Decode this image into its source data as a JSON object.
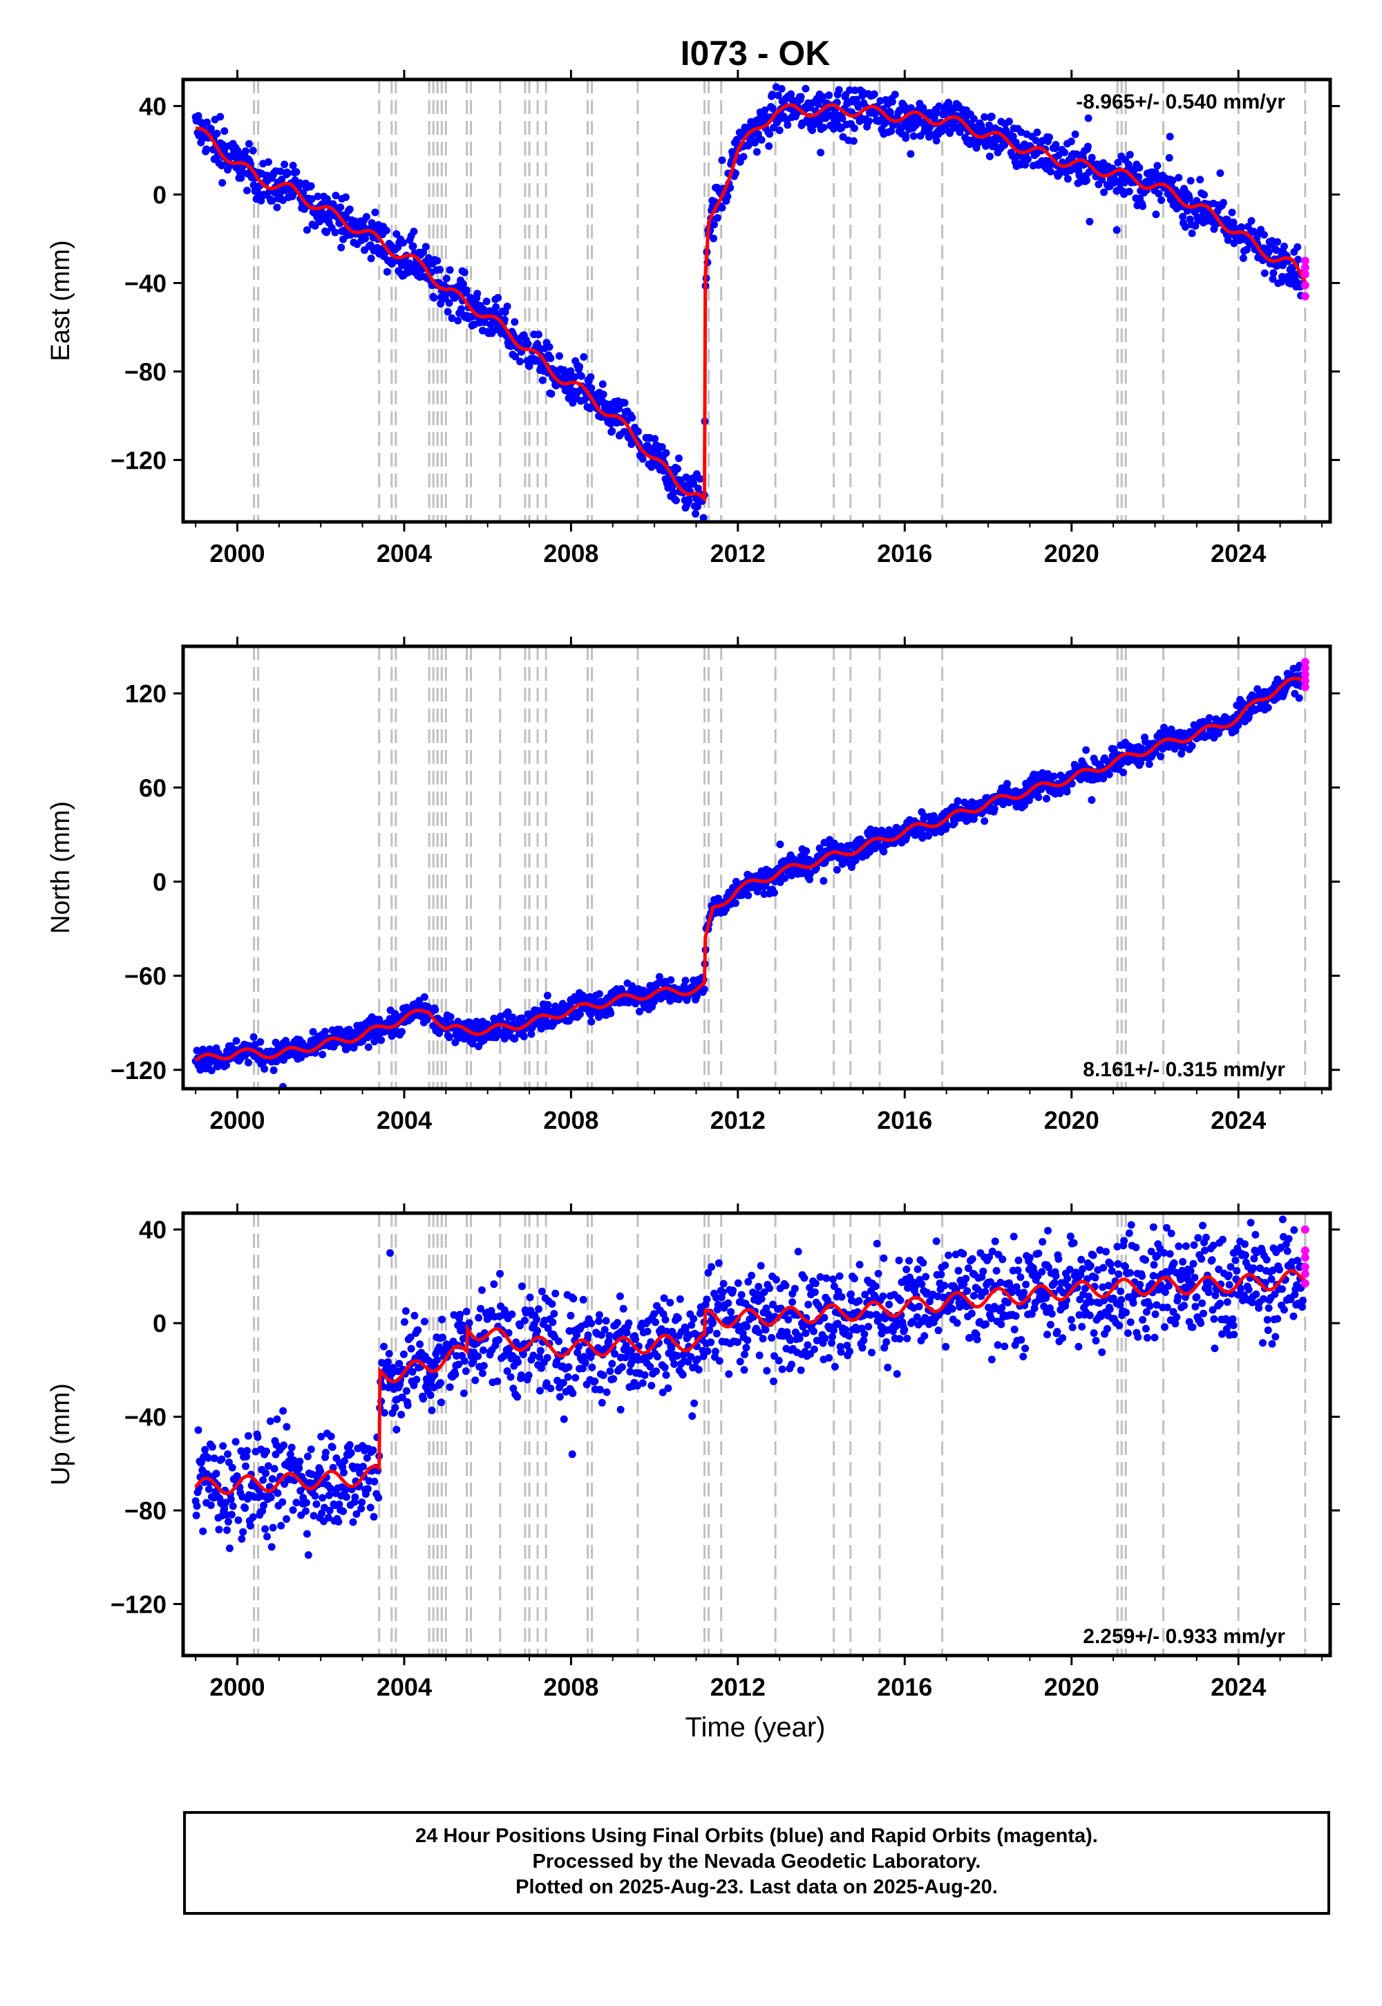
{
  "title": "I073 - OK",
  "xlabel": "Time (year)",
  "colors": {
    "final": "#0000ff",
    "rapid": "#ff00ff",
    "model": "#ff0000",
    "event": "#c0c0c0"
  },
  "caption": {
    "line1": "24 Hour Positions Using Final Orbits (blue) and Rapid Orbits (magenta).",
    "line2": "Processed by the Nevada Geodetic Laboratory.",
    "line3": "Plotted on 2025-Aug-23. Last data on 2025-Aug-20."
  },
  "chart_data": [
    {
      "type": "scatter",
      "name": "east",
      "ylabel": "East (mm)",
      "rate_label": "-8.965+/- 0.540 mm/yr",
      "rate_position": "top-right",
      "xlim": [
        1998.7,
        2026.2
      ],
      "ylim": [
        -148,
        52
      ],
      "xticks": [
        2000,
        2004,
        2008,
        2012,
        2016,
        2020,
        2024
      ],
      "yticks": [
        40,
        0,
        -40,
        -80,
        -120
      ],
      "event_lines": [
        2000.4,
        2000.5,
        2003.4,
        2003.7,
        2003.8,
        2004.6,
        2004.7,
        2004.8,
        2004.9,
        2005.0,
        2005.5,
        2005.6,
        2006.3,
        2006.9,
        2007.0,
        2007.2,
        2007.4,
        2008.4,
        2008.5,
        2009.6,
        2011.2,
        2011.3,
        2011.6,
        2012.9,
        2014.3,
        2014.7,
        2015.4,
        2016.9,
        2021.1,
        2021.2,
        2021.3,
        2022.2,
        2024.0,
        2025.6
      ],
      "trend": [
        [
          1999.0,
          30
        ],
        [
          1999.6,
          20
        ],
        [
          2000.5,
          7
        ],
        [
          2001.3,
          2
        ],
        [
          2002.0,
          -6
        ],
        [
          2003.3,
          -20
        ],
        [
          2003.8,
          -26
        ],
        [
          2004.5,
          -33
        ],
        [
          2005.0,
          -43
        ],
        [
          2006.0,
          -55
        ],
        [
          2007.0,
          -70
        ],
        [
          2007.5,
          -80
        ],
        [
          2008.0,
          -85
        ],
        [
          2009.0,
          -100
        ],
        [
          2009.8,
          -115
        ],
        [
          2010.5,
          -130
        ],
        [
          2011.0,
          -135
        ],
        [
          2011.2,
          -140
        ],
        [
          2011.22,
          -40
        ],
        [
          2011.3,
          -15
        ],
        [
          2011.6,
          0
        ],
        [
          2012.0,
          20
        ],
        [
          2012.9,
          38
        ],
        [
          2014.0,
          38
        ],
        [
          2015.0,
          38
        ],
        [
          2016.0,
          35
        ],
        [
          2017.0,
          34
        ],
        [
          2018.0,
          27
        ],
        [
          2019.0,
          20
        ],
        [
          2020.0,
          14
        ],
        [
          2021.0,
          10
        ],
        [
          2022.0,
          4
        ],
        [
          2023.0,
          -5
        ],
        [
          2024.0,
          -17
        ],
        [
          2024.5,
          -25
        ],
        [
          2025.3,
          -32
        ],
        [
          2025.6,
          -38
        ]
      ],
      "rapid_points": [
        [
          2025.6,
          -30
        ],
        [
          2025.6,
          -33
        ],
        [
          2025.6,
          -36
        ],
        [
          2025.6,
          -41
        ],
        [
          2025.6,
          -46
        ]
      ]
    },
    {
      "type": "scatter",
      "name": "north",
      "ylabel": "North (mm)",
      "rate_label": "8.161+/- 0.315 mm/yr",
      "rate_position": "bottom-right",
      "xlim": [
        1998.7,
        2026.2
      ],
      "ylim": [
        -132,
        150
      ],
      "xticks": [
        2000,
        2004,
        2008,
        2012,
        2016,
        2020,
        2024
      ],
      "yticks": [
        120,
        60,
        0,
        -60,
        -120
      ],
      "event_lines": [
        2000.4,
        2000.5,
        2003.4,
        2003.7,
        2003.8,
        2004.6,
        2004.7,
        2004.8,
        2004.9,
        2005.0,
        2005.5,
        2005.6,
        2006.3,
        2006.9,
        2007.0,
        2007.2,
        2007.4,
        2008.4,
        2008.5,
        2009.6,
        2011.2,
        2011.3,
        2011.6,
        2012.9,
        2014.3,
        2014.7,
        2015.4,
        2016.9,
        2021.1,
        2021.2,
        2021.3,
        2022.2,
        2024.0,
        2025.6
      ],
      "trend": [
        [
          1999.0,
          -114
        ],
        [
          2000.0,
          -109
        ],
        [
          2001.0,
          -110
        ],
        [
          2002.0,
          -104
        ],
        [
          2003.0,
          -98
        ],
        [
          2004.0,
          -87
        ],
        [
          2004.6,
          -82
        ],
        [
          2005.0,
          -94
        ],
        [
          2006.0,
          -95
        ],
        [
          2007.0,
          -90
        ],
        [
          2008.0,
          -82
        ],
        [
          2009.0,
          -76
        ],
        [
          2010.0,
          -71
        ],
        [
          2011.0,
          -69
        ],
        [
          2011.2,
          -67
        ],
        [
          2011.22,
          -38
        ],
        [
          2011.4,
          -18
        ],
        [
          2012.0,
          -5
        ],
        [
          2013.0,
          6
        ],
        [
          2014.0,
          14
        ],
        [
          2015.0,
          22
        ],
        [
          2016.0,
          32
        ],
        [
          2017.0,
          40
        ],
        [
          2018.0,
          50
        ],
        [
          2019.0,
          58
        ],
        [
          2020.0,
          66
        ],
        [
          2021.0,
          76
        ],
        [
          2022.0,
          86
        ],
        [
          2023.0,
          94
        ],
        [
          2024.0,
          104
        ],
        [
          2024.5,
          116
        ],
        [
          2025.0,
          124
        ],
        [
          2025.6,
          130
        ]
      ],
      "rapid_points": [
        [
          2025.6,
          124
        ],
        [
          2025.6,
          128
        ],
        [
          2025.6,
          132
        ],
        [
          2025.6,
          136
        ],
        [
          2025.6,
          140
        ]
      ]
    },
    {
      "type": "scatter",
      "name": "up",
      "ylabel": "Up (mm)",
      "rate_label": "2.259+/- 0.933 mm/yr",
      "rate_position": "bottom-right",
      "xlim": [
        1998.7,
        2026.2
      ],
      "ylim": [
        -142,
        47
      ],
      "xticks": [
        2000,
        2004,
        2008,
        2012,
        2016,
        2020,
        2024
      ],
      "yticks": [
        40,
        0,
        -40,
        -80,
        -120
      ],
      "event_lines": [
        2000.4,
        2000.5,
        2003.4,
        2003.7,
        2003.8,
        2004.6,
        2004.7,
        2004.8,
        2004.9,
        2005.0,
        2005.5,
        2005.6,
        2006.3,
        2006.9,
        2007.0,
        2007.2,
        2007.4,
        2008.4,
        2008.5,
        2009.6,
        2011.2,
        2011.3,
        2011.6,
        2012.9,
        2014.3,
        2014.7,
        2015.4,
        2016.9,
        2021.1,
        2021.2,
        2021.3,
        2022.2,
        2024.0,
        2025.6
      ],
      "trend": [
        [
          1999.0,
          -70
        ],
        [
          2000.0,
          -69
        ],
        [
          2001.0,
          -68
        ],
        [
          2002.0,
          -67
        ],
        [
          2003.0,
          -66
        ],
        [
          2003.4,
          -64
        ],
        [
          2003.42,
          -22
        ],
        [
          2004.0,
          -21
        ],
        [
          2004.6,
          -18
        ],
        [
          2005.0,
          -15
        ],
        [
          2005.5,
          -12
        ],
        [
          2005.52,
          -2
        ],
        [
          2006.0,
          -5
        ],
        [
          2007.0,
          -9
        ],
        [
          2008.0,
          -11
        ],
        [
          2009.0,
          -10
        ],
        [
          2010.0,
          -9
        ],
        [
          2011.0,
          -8
        ],
        [
          2011.2,
          -8
        ],
        [
          2011.22,
          2
        ],
        [
          2012.0,
          2
        ],
        [
          2013.0,
          3
        ],
        [
          2014.0,
          4
        ],
        [
          2015.0,
          5
        ],
        [
          2016.0,
          7
        ],
        [
          2017.0,
          9
        ],
        [
          2018.0,
          11
        ],
        [
          2019.0,
          12
        ],
        [
          2020.0,
          14
        ],
        [
          2021.0,
          15
        ],
        [
          2022.0,
          16
        ],
        [
          2023.0,
          16
        ],
        [
          2024.0,
          17
        ],
        [
          2025.0,
          18
        ],
        [
          2025.6,
          20
        ]
      ],
      "rapid_points": [
        [
          2025.6,
          17
        ],
        [
          2025.6,
          21
        ],
        [
          2025.6,
          24
        ],
        [
          2025.6,
          28
        ],
        [
          2025.6,
          31
        ],
        [
          2025.6,
          40
        ]
      ]
    }
  ]
}
